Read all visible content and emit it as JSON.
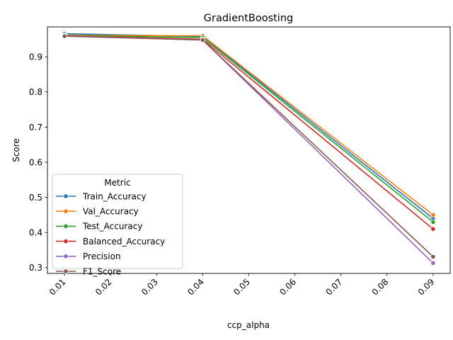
{
  "chart_data": {
    "type": "line",
    "title": "GradientBoosting",
    "xlabel": "ccp_alpha",
    "ylabel": "Score",
    "x": [
      0.01,
      0.04,
      0.09
    ],
    "xlim": [
      0.0063,
      0.0937
    ],
    "ylim": [
      0.2836,
      0.9853
    ],
    "xticks": [
      0.01,
      0.02,
      0.03,
      0.04,
      0.05,
      0.06,
      0.07,
      0.08,
      0.09
    ],
    "xtick_labels": [
      "0.01",
      "0.02",
      "0.03",
      "0.04",
      "0.05",
      "0.06",
      "0.07",
      "0.08",
      "0.09"
    ],
    "yticks": [
      0.3,
      0.4,
      0.5,
      0.6,
      0.7,
      0.8,
      0.9
    ],
    "ytick_labels": [
      "0.3",
      "0.4",
      "0.5",
      "0.6",
      "0.7",
      "0.8",
      "0.9"
    ],
    "grid": false,
    "legend": {
      "title": "Metric",
      "placement": "lower-left"
    },
    "series": [
      {
        "name": "Train_Accuracy",
        "color": "#1f77b4",
        "values": [
          0.966,
          0.958,
          0.44
        ]
      },
      {
        "name": "Val_Accuracy",
        "color": "#ff7f0e",
        "values": [
          0.962,
          0.96,
          0.45
        ]
      },
      {
        "name": "Test_Accuracy",
        "color": "#2ca02c",
        "values": [
          0.961,
          0.955,
          0.43
        ]
      },
      {
        "name": "Balanced_Accuracy",
        "color": "#d62728",
        "values": [
          0.96,
          0.95,
          0.41
        ]
      },
      {
        "name": "Precision",
        "color": "#9467bd",
        "values": [
          0.96,
          0.948,
          0.313
        ]
      },
      {
        "name": "F1_Score",
        "color": "#8c564b",
        "values": [
          0.959,
          0.948,
          0.331
        ]
      }
    ]
  }
}
